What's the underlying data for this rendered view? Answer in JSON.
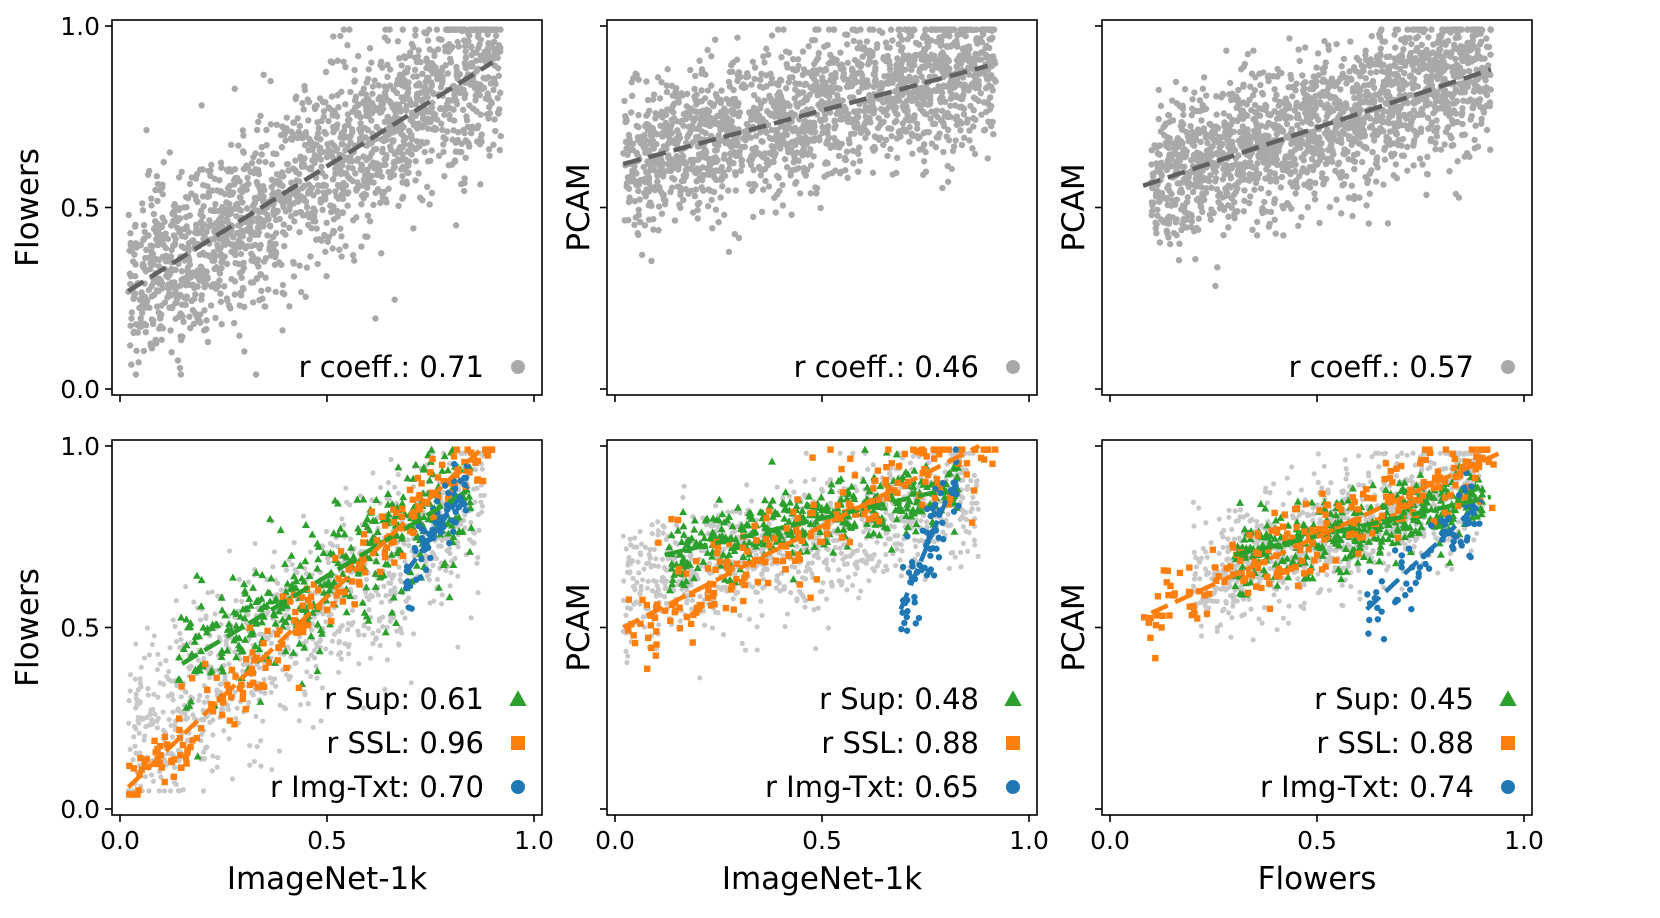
{
  "chart_data": [
    {
      "type": "scatter",
      "xlabel": "",
      "ylabel": "Flowers",
      "xlim": [
        0,
        1
      ],
      "ylim": [
        0,
        1
      ],
      "xticks": [
        "0.0",
        "0.5",
        "1.0"
      ],
      "yticks": [
        "0.0",
        "0.5",
        "1.0"
      ],
      "show_xticklabels": false,
      "show_yticklabels": true,
      "series": [
        {
          "name": "r coeff.: 0.71",
          "color": "#a9a9a9",
          "marker": "circle",
          "n_points": 1800,
          "x_range": [
            0.02,
            0.92
          ],
          "fit": {
            "x": [
              0.02,
              0.9
            ],
            "y": [
              0.27,
              0.9
            ]
          },
          "noise": 0.12
        }
      ]
    },
    {
      "type": "scatter",
      "xlabel": "",
      "ylabel": "PCAM",
      "xlim": [
        0,
        1
      ],
      "ylim": [
        0,
        1
      ],
      "xticks": [
        "0.0",
        "0.5",
        "1.0"
      ],
      "yticks": [
        "0.0",
        "0.5",
        "1.0"
      ],
      "show_xticklabels": false,
      "show_yticklabels": false,
      "series": [
        {
          "name": "r coeff.: 0.46",
          "color": "#a9a9a9",
          "marker": "circle",
          "n_points": 1800,
          "x_range": [
            0.02,
            0.92
          ],
          "fit": {
            "x": [
              0.02,
              0.9
            ],
            "y": [
              0.62,
              0.89
            ]
          },
          "noise": 0.1
        }
      ]
    },
    {
      "type": "scatter",
      "xlabel": "",
      "ylabel": "PCAM",
      "xlim": [
        0,
        1
      ],
      "ylim": [
        0,
        1
      ],
      "xticks": [
        "0.0",
        "0.5",
        "1.0"
      ],
      "yticks": [
        "0.0",
        "0.5",
        "1.0"
      ],
      "show_xticklabels": false,
      "show_yticklabels": false,
      "series": [
        {
          "name": "r coeff.: 0.57",
          "color": "#a9a9a9",
          "marker": "circle",
          "n_points": 1800,
          "x_range": [
            0.1,
            0.92
          ],
          "fit": {
            "x": [
              0.08,
              0.92
            ],
            "y": [
              0.56,
              0.88
            ]
          },
          "noise": 0.1
        }
      ]
    },
    {
      "type": "scatter",
      "xlabel": "ImageNet-1k",
      "ylabel": "Flowers",
      "xlim": [
        0,
        1
      ],
      "ylim": [
        0,
        1
      ],
      "xticks": [
        "0.0",
        "0.5",
        "1.0"
      ],
      "yticks": [
        "0.0",
        "0.5",
        "1.0"
      ],
      "show_xticklabels": true,
      "show_yticklabels": true,
      "background": {
        "color": "#c8c8c8",
        "n_points": 900,
        "x_range": [
          0.02,
          0.88
        ],
        "fit": {
          "x": [
            0.02,
            0.88
          ],
          "y": [
            0.2,
            0.85
          ]
        },
        "noise": 0.12
      },
      "series": [
        {
          "name": "r Sup: 0.61",
          "color": "#2ca02c",
          "marker": "triangle",
          "n_points": 400,
          "x_range": [
            0.14,
            0.85
          ],
          "fit": {
            "x": [
              0.15,
              0.83
            ],
            "y": [
              0.4,
              0.87
            ]
          },
          "noise": 0.09
        },
        {
          "name": "r SSL: 0.96",
          "color": "#ff7f0e",
          "marker": "square",
          "n_points": 220,
          "x_range": [
            0.02,
            0.9
          ],
          "fit": {
            "x": [
              0.02,
              0.88
            ],
            "y": [
              0.06,
              1.0
            ]
          },
          "noise": 0.05
        },
        {
          "name": "r Img-Txt: 0.70",
          "color": "#1f77b4",
          "marker": "circle",
          "n_points": 70,
          "x_range": [
            0.69,
            0.84
          ],
          "fit": {
            "x": [
              0.69,
              0.84
            ],
            "y": [
              0.65,
              0.89
            ]
          },
          "noise": 0.04
        }
      ]
    },
    {
      "type": "scatter",
      "xlabel": "ImageNet-1k",
      "ylabel": "PCAM",
      "xlim": [
        0,
        1
      ],
      "ylim": [
        0,
        1
      ],
      "xticks": [
        "0.0",
        "0.5",
        "1.0"
      ],
      "yticks": [
        "0.0",
        "0.5",
        "1.0"
      ],
      "show_xticklabels": true,
      "show_yticklabels": false,
      "background": {
        "color": "#c8c8c8",
        "n_points": 900,
        "x_range": [
          0.02,
          0.88
        ],
        "fit": {
          "x": [
            0.02,
            0.88
          ],
          "y": [
            0.6,
            0.86
          ]
        },
        "noise": 0.09
      },
      "series": [
        {
          "name": "r Sup: 0.48",
          "color": "#2ca02c",
          "marker": "triangle",
          "n_points": 400,
          "x_range": [
            0.13,
            0.83
          ],
          "fit": {
            "x": [
              0.12,
              0.8
            ],
            "y": [
              0.7,
              0.88
            ]
          },
          "noise": 0.05
        },
        {
          "name": "r SSL: 0.88",
          "color": "#ff7f0e",
          "marker": "square",
          "n_points": 220,
          "x_range": [
            0.02,
            0.92
          ],
          "fit": {
            "x": [
              0.02,
              0.88
            ],
            "y": [
              0.5,
              1.0
            ]
          },
          "noise": 0.07
        },
        {
          "name": "r Img-Txt: 0.65",
          "color": "#1f77b4",
          "marker": "circle",
          "n_points": 70,
          "x_range": [
            0.69,
            0.83
          ],
          "fit": {
            "x": [
              0.69,
              0.8
            ],
            "y": [
              0.55,
              0.85
            ]
          },
          "noise": 0.06
        }
      ]
    },
    {
      "type": "scatter",
      "xlabel": "Flowers",
      "ylabel": "PCAM",
      "xlim": [
        0,
        1
      ],
      "ylim": [
        0,
        1
      ],
      "xticks": [
        "0.0",
        "0.5",
        "1.0"
      ],
      "yticks": [
        "0.0",
        "0.5",
        "1.0"
      ],
      "show_xticklabels": true,
      "show_yticklabels": false,
      "background": {
        "color": "#c8c8c8",
        "n_points": 900,
        "x_range": [
          0.2,
          0.9
        ],
        "fit": {
          "x": [
            0.2,
            0.9
          ],
          "y": [
            0.62,
            0.9
          ]
        },
        "noise": 0.08
      },
      "series": [
        {
          "name": "r Sup: 0.45",
          "color": "#2ca02c",
          "marker": "triangle",
          "n_points": 400,
          "x_range": [
            0.3,
            0.9
          ],
          "fit": {
            "x": [
              0.3,
              0.92
            ],
            "y": [
              0.7,
              0.86
            ]
          },
          "noise": 0.05
        },
        {
          "name": "r SSL: 0.88",
          "color": "#ff7f0e",
          "marker": "square",
          "n_points": 220,
          "x_range": [
            0.08,
            0.93
          ],
          "fit": {
            "x": [
              0.1,
              0.94
            ],
            "y": [
              0.54,
              0.98
            ]
          },
          "noise": 0.06
        },
        {
          "name": "r Img-Txt: 0.74",
          "color": "#1f77b4",
          "marker": "circle",
          "n_points": 70,
          "x_range": [
            0.62,
            0.9
          ],
          "fit": {
            "x": [
              0.62,
              0.9
            ],
            "y": [
              0.55,
              0.85
            ]
          },
          "noise": 0.05
        }
      ]
    }
  ]
}
